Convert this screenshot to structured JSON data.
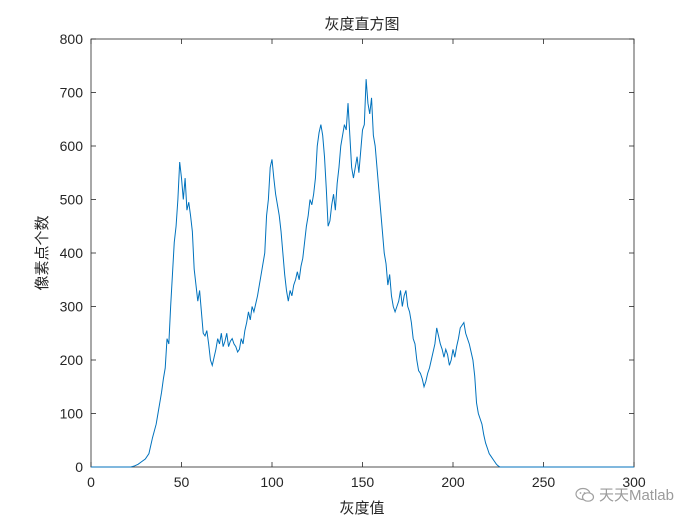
{
  "chart_data": {
    "type": "line",
    "title": "灰度直方图",
    "xlabel": "灰度值",
    "ylabel": "像素点个数",
    "xlim": [
      0,
      300
    ],
    "ylim": [
      0,
      800
    ],
    "xticks": [
      "0",
      "50",
      "100",
      "150",
      "200",
      "250",
      "300"
    ],
    "yticks": [
      "0",
      "100",
      "200",
      "300",
      "400",
      "500",
      "600",
      "700",
      "800"
    ],
    "grid": false,
    "legend": "none",
    "line_color": "#0072bd",
    "series": [
      {
        "points": [
          [
            0,
            0
          ],
          [
            22,
            0
          ],
          [
            24,
            2
          ],
          [
            26,
            5
          ],
          [
            28,
            10
          ],
          [
            30,
            15
          ],
          [
            32,
            25
          ],
          [
            33,
            40
          ],
          [
            34,
            55
          ],
          [
            36,
            80
          ],
          [
            37,
            100
          ],
          [
            38,
            120
          ],
          [
            39,
            140
          ],
          [
            40,
            165
          ],
          [
            41,
            185
          ],
          [
            42,
            240
          ],
          [
            43,
            230
          ],
          [
            44,
            300
          ],
          [
            45,
            360
          ],
          [
            46,
            420
          ],
          [
            47,
            450
          ],
          [
            48,
            500
          ],
          [
            49,
            570
          ],
          [
            50,
            540
          ],
          [
            51,
            500
          ],
          [
            52,
            540
          ],
          [
            53,
            480
          ],
          [
            54,
            495
          ],
          [
            55,
            470
          ],
          [
            56,
            440
          ],
          [
            57,
            370
          ],
          [
            58,
            340
          ],
          [
            59,
            310
          ],
          [
            60,
            330
          ],
          [
            61,
            290
          ],
          [
            62,
            250
          ],
          [
            63,
            245
          ],
          [
            64,
            255
          ],
          [
            65,
            230
          ],
          [
            66,
            200
          ],
          [
            67,
            190
          ],
          [
            68,
            205
          ],
          [
            69,
            220
          ],
          [
            70,
            240
          ],
          [
            71,
            230
          ],
          [
            72,
            250
          ],
          [
            73,
            225
          ],
          [
            74,
            235
          ],
          [
            75,
            250
          ],
          [
            76,
            225
          ],
          [
            77,
            235
          ],
          [
            78,
            240
          ],
          [
            79,
            230
          ],
          [
            80,
            225
          ],
          [
            81,
            215
          ],
          [
            82,
            220
          ],
          [
            83,
            240
          ],
          [
            84,
            230
          ],
          [
            85,
            255
          ],
          [
            86,
            270
          ],
          [
            87,
            290
          ],
          [
            88,
            275
          ],
          [
            89,
            300
          ],
          [
            90,
            290
          ],
          [
            91,
            305
          ],
          [
            92,
            320
          ],
          [
            93,
            340
          ],
          [
            94,
            360
          ],
          [
            95,
            380
          ],
          [
            96,
            400
          ],
          [
            97,
            470
          ],
          [
            98,
            500
          ],
          [
            99,
            560
          ],
          [
            100,
            575
          ],
          [
            101,
            540
          ],
          [
            102,
            510
          ],
          [
            103,
            490
          ],
          [
            104,
            470
          ],
          [
            105,
            440
          ],
          [
            106,
            400
          ],
          [
            107,
            360
          ],
          [
            108,
            330
          ],
          [
            109,
            310
          ],
          [
            110,
            330
          ],
          [
            111,
            320
          ],
          [
            112,
            340
          ],
          [
            113,
            350
          ],
          [
            114,
            365
          ],
          [
            115,
            350
          ],
          [
            116,
            375
          ],
          [
            117,
            390
          ],
          [
            118,
            420
          ],
          [
            119,
            450
          ],
          [
            120,
            470
          ],
          [
            121,
            500
          ],
          [
            122,
            490
          ],
          [
            123,
            510
          ],
          [
            124,
            540
          ],
          [
            125,
            600
          ],
          [
            126,
            625
          ],
          [
            127,
            640
          ],
          [
            128,
            620
          ],
          [
            129,
            580
          ],
          [
            130,
            520
          ],
          [
            131,
            450
          ],
          [
            132,
            460
          ],
          [
            133,
            490
          ],
          [
            134,
            510
          ],
          [
            135,
            480
          ],
          [
            136,
            530
          ],
          [
            137,
            560
          ],
          [
            138,
            600
          ],
          [
            139,
            620
          ],
          [
            140,
            640
          ],
          [
            141,
            630
          ],
          [
            142,
            680
          ],
          [
            143,
            620
          ],
          [
            144,
            560
          ],
          [
            145,
            540
          ],
          [
            146,
            560
          ],
          [
            147,
            580
          ],
          [
            148,
            550
          ],
          [
            149,
            590
          ],
          [
            150,
            630
          ],
          [
            151,
            640
          ],
          [
            152,
            725
          ],
          [
            153,
            680
          ],
          [
            154,
            660
          ],
          [
            155,
            690
          ],
          [
            156,
            620
          ],
          [
            157,
            600
          ],
          [
            158,
            560
          ],
          [
            159,
            520
          ],
          [
            160,
            480
          ],
          [
            161,
            440
          ],
          [
            162,
            400
          ],
          [
            163,
            380
          ],
          [
            164,
            340
          ],
          [
            165,
            360
          ],
          [
            166,
            320
          ],
          [
            167,
            300
          ],
          [
            168,
            290
          ],
          [
            169,
            300
          ],
          [
            170,
            310
          ],
          [
            171,
            330
          ],
          [
            172,
            300
          ],
          [
            173,
            320
          ],
          [
            174,
            330
          ],
          [
            175,
            300
          ],
          [
            176,
            290
          ],
          [
            177,
            270
          ],
          [
            178,
            240
          ],
          [
            179,
            230
          ],
          [
            180,
            200
          ],
          [
            181,
            180
          ],
          [
            182,
            175
          ],
          [
            183,
            165
          ],
          [
            184,
            150
          ],
          [
            185,
            160
          ],
          [
            186,
            175
          ],
          [
            187,
            185
          ],
          [
            188,
            200
          ],
          [
            189,
            215
          ],
          [
            190,
            230
          ],
          [
            191,
            260
          ],
          [
            192,
            245
          ],
          [
            193,
            230
          ],
          [
            194,
            220
          ],
          [
            195,
            205
          ],
          [
            196,
            220
          ],
          [
            197,
            210
          ],
          [
            198,
            190
          ],
          [
            199,
            200
          ],
          [
            200,
            220
          ],
          [
            201,
            205
          ],
          [
            202,
            225
          ],
          [
            203,
            240
          ],
          [
            204,
            260
          ],
          [
            205,
            265
          ],
          [
            206,
            270
          ],
          [
            207,
            250
          ],
          [
            208,
            240
          ],
          [
            209,
            230
          ],
          [
            210,
            215
          ],
          [
            211,
            200
          ],
          [
            212,
            170
          ],
          [
            213,
            120
          ],
          [
            214,
            100
          ],
          [
            215,
            90
          ],
          [
            216,
            80
          ],
          [
            217,
            60
          ],
          [
            218,
            45
          ],
          [
            219,
            35
          ],
          [
            220,
            25
          ],
          [
            221,
            20
          ],
          [
            222,
            15
          ],
          [
            223,
            10
          ],
          [
            224,
            5
          ],
          [
            225,
            2
          ],
          [
            226,
            0
          ],
          [
            300,
            0
          ]
        ]
      }
    ]
  },
  "watermark": {
    "text": "天天Matlab",
    "icon": "wechat-icon"
  }
}
